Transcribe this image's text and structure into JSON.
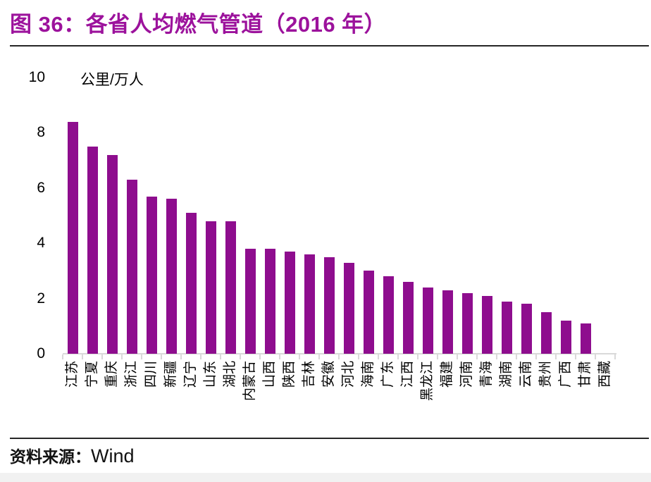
{
  "figure": {
    "source_label": "资料来源：",
    "source_value": "Wind"
  },
  "chart_data": {
    "type": "bar",
    "title": "图 36：各省人均燃气管道（2016 年）",
    "ylabel": "公里/万人",
    "xlabel": "",
    "categories": [
      "江苏",
      "宁夏",
      "重庆",
      "浙江",
      "四川",
      "新疆",
      "辽宁",
      "山东",
      "湖北",
      "内蒙古",
      "山西",
      "陕西",
      "吉林",
      "安徽",
      "河北",
      "海南",
      "广东",
      "江西",
      "黑龙江",
      "福建",
      "河南",
      "青海",
      "湖南",
      "云南",
      "贵州",
      "广西",
      "甘肃",
      "西藏"
    ],
    "values": [
      8.4,
      7.5,
      7.2,
      6.3,
      5.7,
      5.6,
      5.1,
      4.8,
      4.8,
      3.8,
      3.8,
      3.7,
      3.6,
      3.5,
      3.3,
      3.0,
      2.8,
      2.6,
      2.4,
      2.3,
      2.2,
      2.1,
      1.9,
      1.8,
      1.5,
      1.2,
      1.1,
      0
    ],
    "ylim": [
      0,
      10
    ],
    "y_ticks": [
      10,
      8,
      6,
      4,
      2,
      0
    ],
    "grid": false,
    "legend": "none",
    "bar_color": "#8E0D8E",
    "title_color": "#9C129C",
    "axis_color": "#D9D9D9",
    "text_color": "#000000"
  }
}
